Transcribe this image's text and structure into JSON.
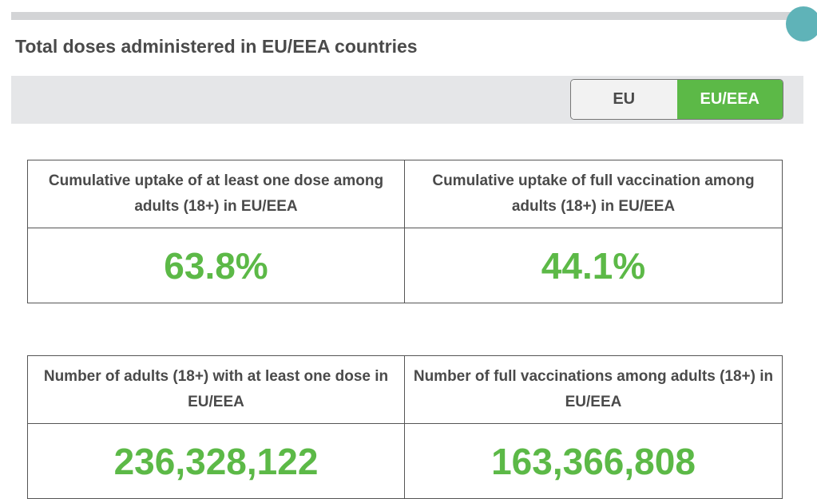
{
  "title": "Total doses administered in EU/EEA countries",
  "toggle": {
    "options": [
      "EU",
      "EU/EEA"
    ],
    "selected": "EU/EEA"
  },
  "cards": [
    {
      "label": "Cumulative uptake of at least one dose among adults (18+) in EU/EEA",
      "value": "63.8%"
    },
    {
      "label": "Cumulative uptake of full vaccination among adults (18+) in EU/EEA",
      "value": "44.1%"
    },
    {
      "label": "Number of adults (18+) with at least one dose in EU/EEA",
      "value": "236,328,122"
    },
    {
      "label": "Number of full vaccinations among adults (18+) in EU/EEA",
      "value": "163,366,808"
    }
  ]
}
